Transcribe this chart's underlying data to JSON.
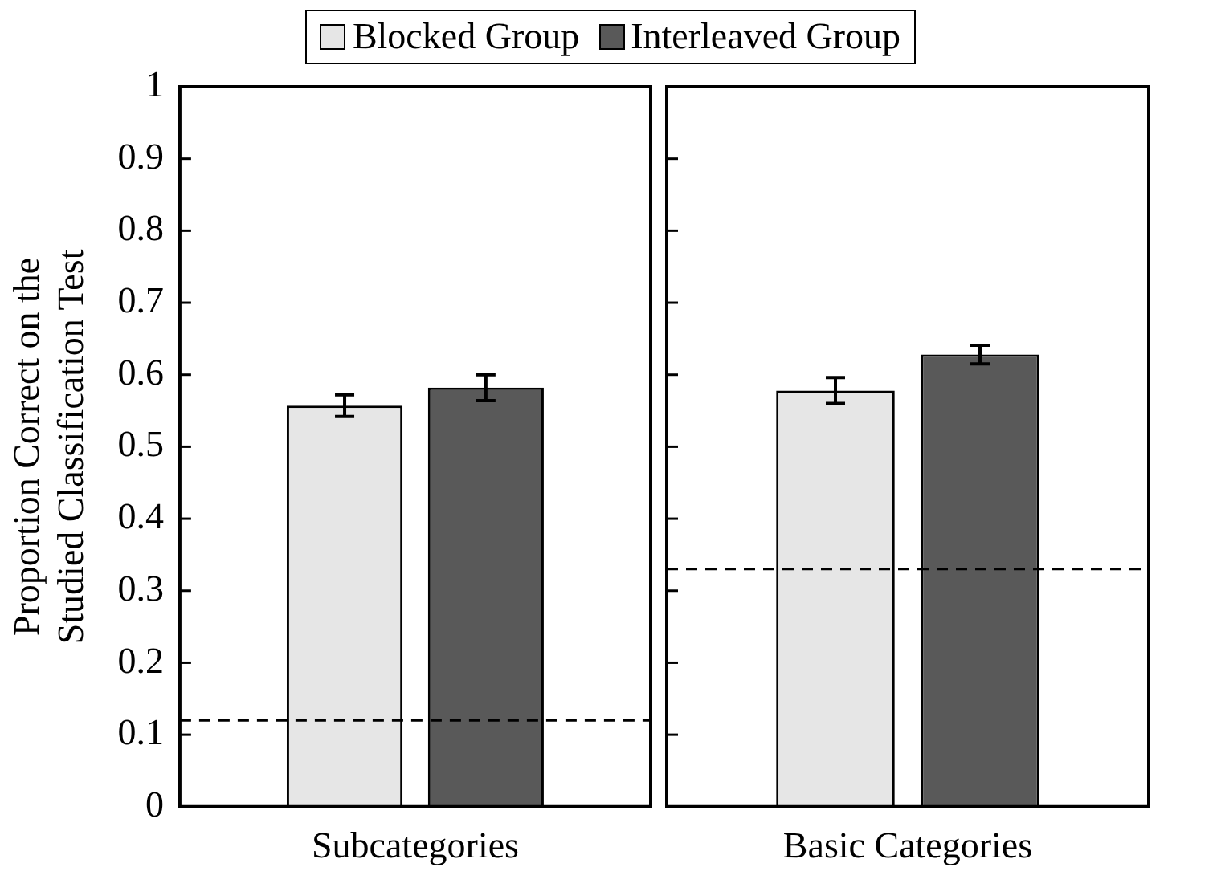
{
  "chart_data": [
    {
      "type": "bar",
      "categories": [
        "Subcategories"
      ],
      "ylabel": "Proportion Correct on the Studied Classification Test",
      "ylim": [
        0,
        1
      ],
      "yticks": [
        0,
        0.1,
        0.2,
        0.3,
        0.4,
        0.5,
        0.6,
        0.7,
        0.8,
        0.9,
        1
      ],
      "legend": "top",
      "series": [
        {
          "name": "Blocked Group",
          "color": "#e6e6e6",
          "values": [
            0.557
          ],
          "errors": [
            0.015
          ]
        },
        {
          "name": "Interleaved Group",
          "color": "#595959",
          "values": [
            0.582
          ],
          "errors": [
            0.018
          ]
        }
      ],
      "ref_lines": [
        {
          "axis": "y",
          "value": 0.12,
          "line_style": "dashed"
        }
      ]
    },
    {
      "type": "bar",
      "categories": [
        "Basic Categories"
      ],
      "ylim": [
        0,
        1
      ],
      "yticks": [
        0,
        0.1,
        0.2,
        0.3,
        0.4,
        0.5,
        0.6,
        0.7,
        0.8,
        0.9,
        1
      ],
      "tick_labels": "x",
      "series": [
        {
          "color": "#e6e6e6",
          "values": [
            0.578
          ],
          "errors": [
            0.018
          ]
        },
        {
          "color": "#595959",
          "values": [
            0.628
          ],
          "errors": [
            0.013
          ]
        }
      ],
      "ref_lines": [
        {
          "axis": "y",
          "value": 0.33,
          "line_style": "dashed"
        }
      ]
    }
  ]
}
